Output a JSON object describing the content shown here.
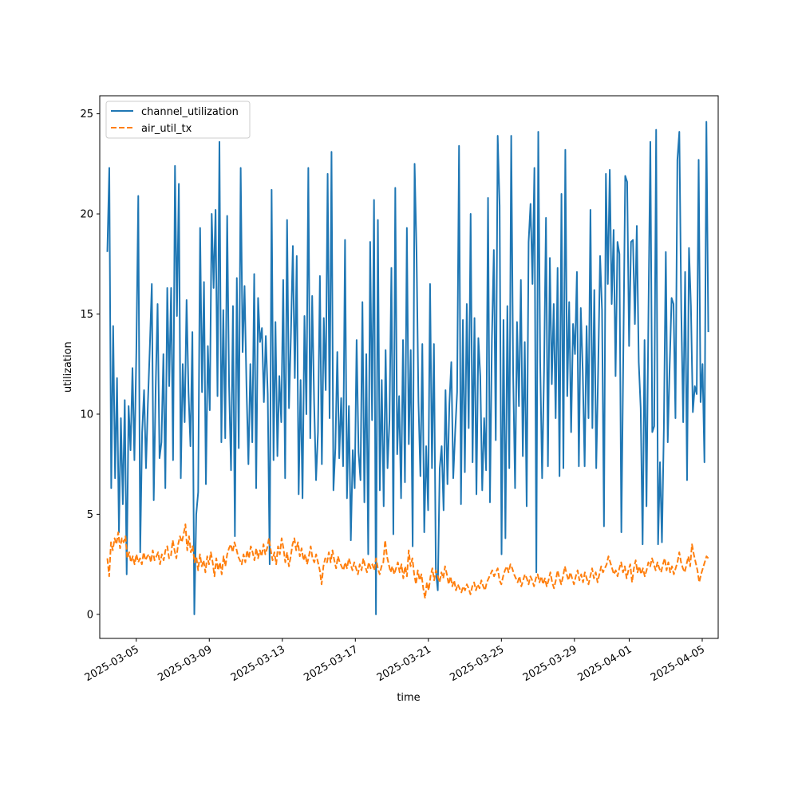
{
  "chart_data": {
    "type": "line",
    "title": "",
    "xlabel": "time",
    "ylabel": "utilization",
    "x_start": "2025-03-03 10:00",
    "x_end": "2025-04-05 08:00",
    "xlim": [
      "2025-03-03 00:00",
      "2025-04-05 21:00"
    ],
    "ylim": [
      -1.2,
      25.9
    ],
    "yticks": [
      0,
      5,
      10,
      15,
      20,
      25
    ],
    "xticks": [
      "2025-03-05",
      "2025-03-09",
      "2025-03-13",
      "2025-03-17",
      "2025-03-21",
      "2025-03-25",
      "2025-03-29",
      "2025-04-01",
      "2025-04-05"
    ],
    "grid": false,
    "legend": {
      "position": "upper-left"
    },
    "series": [
      {
        "name": "channel_utilization",
        "color": "#1f77b4",
        "style": "solid",
        "values": [
          18.1,
          22.3,
          6.3,
          14.4,
          6.8,
          11.8,
          4.1,
          9.8,
          5.5,
          10.7,
          2.0,
          10.4,
          8.2,
          12.3,
          7.7,
          13.1,
          20.9,
          3.1,
          9.1,
          11.2,
          7.3,
          10.6,
          13.4,
          16.5,
          5.7,
          11.3,
          15.5,
          7.8,
          8.6,
          13.0,
          6.3,
          16.3,
          11.4,
          16.3,
          7.7,
          22.4,
          14.9,
          21.5,
          6.8,
          12.5,
          9.6,
          15.7,
          11.1,
          8.4,
          14.1,
          0.0,
          5.0,
          6.1,
          19.3,
          11.1,
          16.6,
          6.5,
          13.4,
          10.2,
          20.0,
          16.3,
          20.2,
          10.9,
          23.6,
          8.6,
          15.2,
          8.8,
          19.9,
          11.4,
          7.2,
          15.4,
          3.9,
          16.8,
          8.3,
          22.3,
          13.1,
          16.4,
          11.4,
          7.5,
          12.5,
          8.6,
          17.0,
          6.3,
          15.8,
          13.6,
          14.3,
          10.6,
          13.9,
          11.0,
          2.5,
          21.2,
          7.7,
          14.6,
          7.9,
          11.9,
          9.6,
          16.7,
          6.8,
          19.7,
          10.3,
          14.0,
          18.4,
          11.8,
          17.9,
          6.0,
          11.7,
          5.8,
          14.9,
          10.0,
          22.3,
          8.8,
          15.9,
          10.6,
          6.7,
          9.1,
          16.9,
          7.5,
          14.8,
          11.2,
          22.0,
          9.8,
          23.1,
          6.2,
          8.3,
          13.1,
          7.8,
          10.8,
          7.4,
          18.7,
          5.8,
          10.4,
          3.7,
          8.2,
          6.3,
          13.7,
          8.1,
          6.7,
          15.6,
          5.6,
          13.0,
          3.0,
          18.6,
          9.7,
          20.7,
          0.0,
          19.7,
          6.2,
          11.7,
          5.4,
          13.2,
          7.3,
          9.7,
          17.3,
          4.0,
          21.3,
          8.0,
          10.9,
          5.8,
          13.7,
          6.6,
          19.3,
          8.5,
          13.2,
          3.4,
          22.5,
          18.1,
          10.6,
          6.9,
          13.5,
          4.1,
          8.4,
          5.2,
          16.5,
          7.3,
          13.5,
          2.2,
          1.2,
          7.3,
          8.4,
          5.2,
          11.2,
          6.5,
          10.5,
          12.6,
          6.8,
          9.1,
          11.1,
          23.4,
          5.5,
          14.7,
          7.1,
          15.5,
          9.3,
          20.0,
          7.6,
          14.8,
          6.0,
          13.8,
          11.9,
          6.2,
          9.8,
          7.2,
          20.8,
          5.6,
          13.7,
          18.2,
          8.7,
          23.9,
          20.4,
          3.0,
          14.7,
          3.8,
          15.4,
          7.3,
          23.9,
          12.0,
          6.3,
          14.6,
          10.4,
          16.7,
          7.9,
          13.6,
          5.4,
          18.6,
          20.5,
          16.5,
          22.3,
          2.1,
          24.1,
          12.6,
          6.8,
          12.2,
          19.8,
          7.4,
          17.8,
          11.5,
          15.5,
          9.8,
          17.3,
          6.9,
          21.0,
          7.3,
          23.2,
          10.9,
          15.6,
          9.1,
          14.5,
          13.0,
          17.1,
          7.4,
          15.3,
          12.2,
          7.4,
          14.4,
          9.8,
          20.2,
          9.3,
          16.2,
          7.3,
          12.2,
          17.9,
          15.2,
          4.4,
          22.0,
          16.5,
          22.2,
          15.5,
          19.2,
          11.9,
          18.6,
          18.0,
          4.1,
          12.9,
          21.9,
          21.6,
          13.4,
          18.6,
          18.7,
          14.5,
          19.4,
          12.6,
          10.3,
          3.5,
          13.7,
          5.4,
          14.8,
          23.6,
          9.1,
          9.4,
          24.2,
          3.5,
          7.6,
          3.6,
          9.3,
          18.1,
          8.6,
          12.4,
          15.8,
          15.5,
          9.8,
          22.7,
          24.1,
          15.2,
          9.6,
          17.1,
          6.7,
          18.3,
          15.4,
          10.1,
          11.4,
          11.0,
          22.7,
          10.6,
          12.5,
          7.6,
          24.6,
          14.1
        ]
      },
      {
        "name": "air_util_tx",
        "color": "#ff7f0e",
        "style": "dashed",
        "values": [
          2.8,
          1.9,
          3.6,
          3.2,
          3.8,
          3.5,
          4.1,
          3.3,
          3.8,
          3.6,
          3.9,
          2.8,
          3.1,
          2.6,
          2.9,
          2.5,
          3.0,
          2.6,
          2.8,
          2.5,
          3.1,
          2.7,
          2.9,
          3.0,
          2.6,
          3.2,
          2.7,
          2.9,
          3.1,
          2.5,
          3.0,
          2.7,
          3.2,
          3.4,
          2.8,
          2.9,
          3.7,
          3.2,
          2.8,
          3.5,
          3.9,
          3.6,
          4.0,
          4.5,
          3.2,
          3.9,
          3.1,
          3.4,
          2.6,
          2.9,
          2.2,
          3.0,
          2.4,
          2.7,
          2.1,
          2.9,
          2.5,
          3.1,
          2.6,
          1.9,
          2.8,
          2.2,
          2.6,
          2.0,
          2.9,
          2.4,
          3.0,
          3.3,
          3.5,
          3.1,
          3.6,
          3.3,
          2.9,
          2.7,
          2.5,
          3.0,
          2.6,
          3.2,
          2.8,
          3.4,
          3.1,
          2.7,
          3.3,
          2.8,
          3.2,
          2.9,
          3.5,
          3.0,
          3.3,
          3.8,
          3.2,
          2.7,
          3.1,
          2.5,
          3.4,
          3.0,
          3.8,
          3.3,
          2.6,
          3.1,
          2.4,
          2.9,
          3.5,
          3.8,
          3.2,
          3.6,
          2.9,
          3.3,
          2.7,
          3.0,
          2.5,
          2.9,
          3.4,
          2.8,
          2.6,
          3.0,
          2.6,
          2.2,
          1.5,
          2.4,
          2.8,
          2.6,
          3.1,
          2.6,
          3.2,
          2.7,
          2.3,
          2.9,
          2.6,
          2.4,
          2.2,
          2.6,
          2.3,
          2.8,
          2.5,
          2.2,
          2.6,
          2.3,
          2.0,
          2.5,
          2.2,
          2.8,
          2.4,
          2.1,
          2.6,
          2.3,
          2.5,
          2.2,
          2.8,
          2.3,
          2.0,
          2.4,
          2.6,
          3.7,
          2.9,
          2.5,
          2.1,
          2.4,
          2.0,
          2.3,
          2.6,
          2.1,
          2.5,
          1.8,
          2.4,
          1.9,
          3.2,
          2.4,
          2.8,
          2.0,
          1.5,
          2.2,
          1.7,
          2.0,
          1.3,
          0.8,
          1.6,
          1.2,
          1.9,
          2.3,
          1.7,
          2.2,
          1.9,
          1.6,
          2.1,
          1.8,
          2.4,
          2.0,
          1.5,
          1.9,
          1.4,
          1.7,
          1.2,
          1.5,
          1.3,
          1.1,
          1.4,
          1.2,
          1.5,
          1.3,
          1.0,
          1.4,
          1.6,
          1.2,
          1.5,
          1.3,
          1.7,
          1.4,
          1.2,
          1.6,
          1.8,
          2.0,
          2.2,
          1.9,
          2.1,
          2.3,
          1.7,
          1.5,
          1.9,
          2.2,
          2.4,
          2.1,
          2.5,
          2.3,
          2.0,
          1.8,
          1.6,
          1.9,
          1.4,
          1.7,
          2.0,
          1.8,
          1.5,
          1.9,
          1.7,
          1.4,
          1.8,
          2.0,
          1.6,
          1.9,
          1.5,
          1.8,
          1.4,
          1.7,
          2.1,
          1.6,
          1.3,
          1.7,
          2.2,
          1.8,
          1.5,
          1.9,
          2.4,
          2.0,
          1.7,
          2.1,
          1.8,
          1.5,
          1.9,
          2.2,
          1.7,
          2.0,
          1.6,
          2.1,
          1.8,
          1.5,
          1.9,
          2.3,
          1.8,
          2.1,
          1.6,
          2.0,
          2.4,
          2.1,
          2.3,
          2.5,
          2.9,
          2.6,
          2.3,
          2.0,
          2.2,
          1.9,
          2.3,
          2.6,
          2.1,
          2.4,
          1.8,
          2.2,
          2.5,
          1.6,
          2.3,
          2.7,
          2.1,
          2.4,
          2.0,
          2.3,
          1.9,
          2.2,
          2.6,
          2.4,
          2.8,
          2.5,
          2.2,
          2.6,
          2.3,
          2.1,
          2.5,
          2.8,
          2.2,
          2.6,
          2.1,
          2.4,
          2.0,
          2.3,
          2.6,
          3.1,
          2.6,
          2.3,
          2.1,
          2.5,
          2.9,
          2.4,
          3.5,
          3.0,
          2.6,
          2.2,
          1.6,
          2.0,
          2.3,
          2.6,
          2.9,
          2.8
        ]
      }
    ]
  }
}
